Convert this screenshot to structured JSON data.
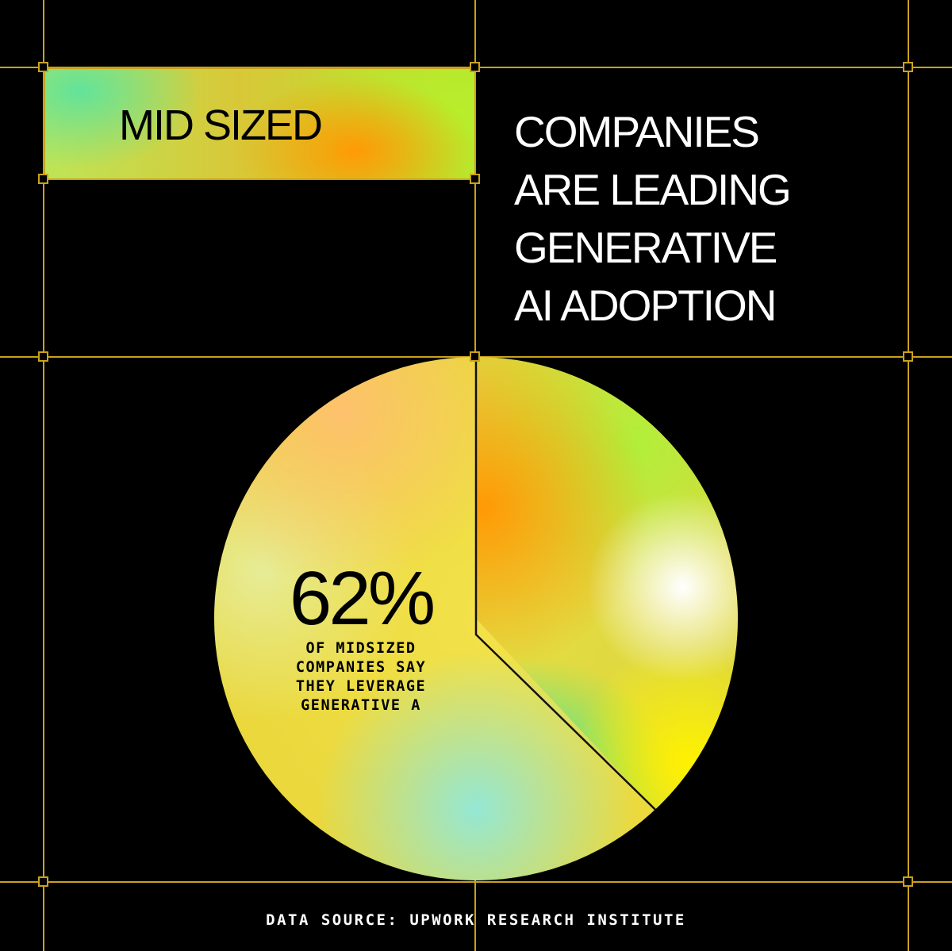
{
  "tag": {
    "label": "MID SIZED"
  },
  "headline": {
    "lines": [
      "COMPANIES",
      "ARE LEADING",
      "GENERATIVE",
      "AI ADOPTION"
    ]
  },
  "chart_data": {
    "type": "pie",
    "slices": [
      {
        "label": "OF MIDSIZED COMPANIES SAY THEY LEVERAGE GENERATIVE A",
        "value": 62
      },
      {
        "label": "",
        "value": 38
      }
    ],
    "value_label": "62%",
    "caption_lines": [
      "OF MIDSIZED",
      "COMPANIES SAY",
      "THEY LEVERAGE",
      "GENERATIVE A"
    ]
  },
  "source": {
    "text": "DATA SOURCE: UPWORK RESEARCH INSTITUTE"
  },
  "colors": {
    "grid": "#c9a21a",
    "background": "#000000",
    "orange": "#ff9a05",
    "lime": "#b8ee2c",
    "mint": "#62e39a",
    "yellow": "#f2ea1e"
  }
}
